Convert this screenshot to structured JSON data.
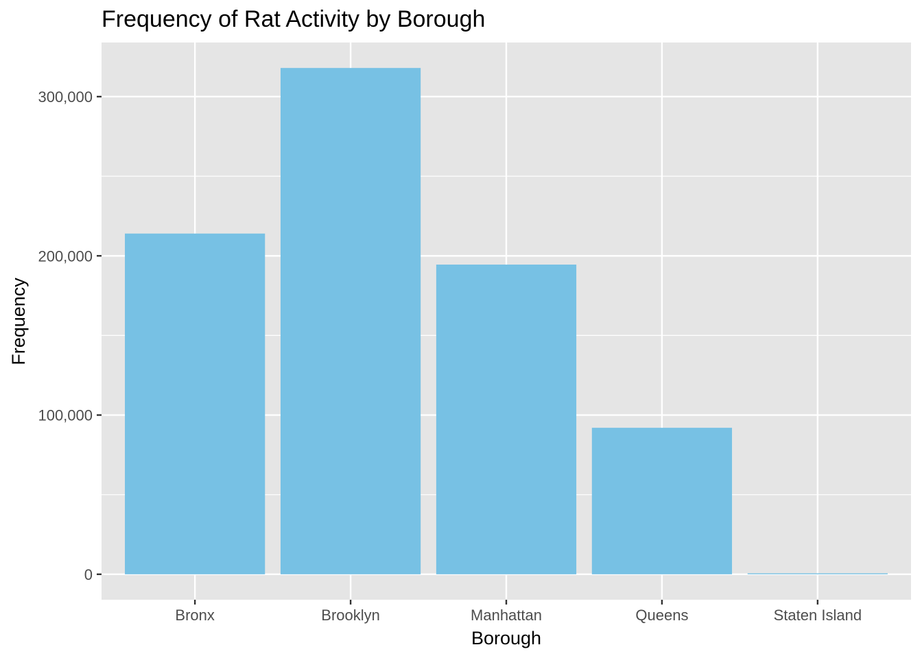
{
  "chart_data": {
    "type": "bar",
    "title": "Frequency of Rat Activity by Borough",
    "xlabel": "Borough",
    "ylabel": "Frequency",
    "categories": [
      "Bronx",
      "Brooklyn",
      "Manhattan",
      "Queens",
      "Staten Island"
    ],
    "values": [
      214000,
      318000,
      194500,
      92000,
      600
    ],
    "y_ticks": [
      0,
      100000,
      200000,
      300000
    ],
    "y_tick_labels": [
      "0",
      "100,000",
      "200,000",
      "300,000"
    ],
    "ylim": [
      -16000,
      334000
    ],
    "grid": true,
    "bar_color": "#77C1E4",
    "panel_color": "#E5E5E5",
    "grid_color": "#FFFFFF"
  }
}
